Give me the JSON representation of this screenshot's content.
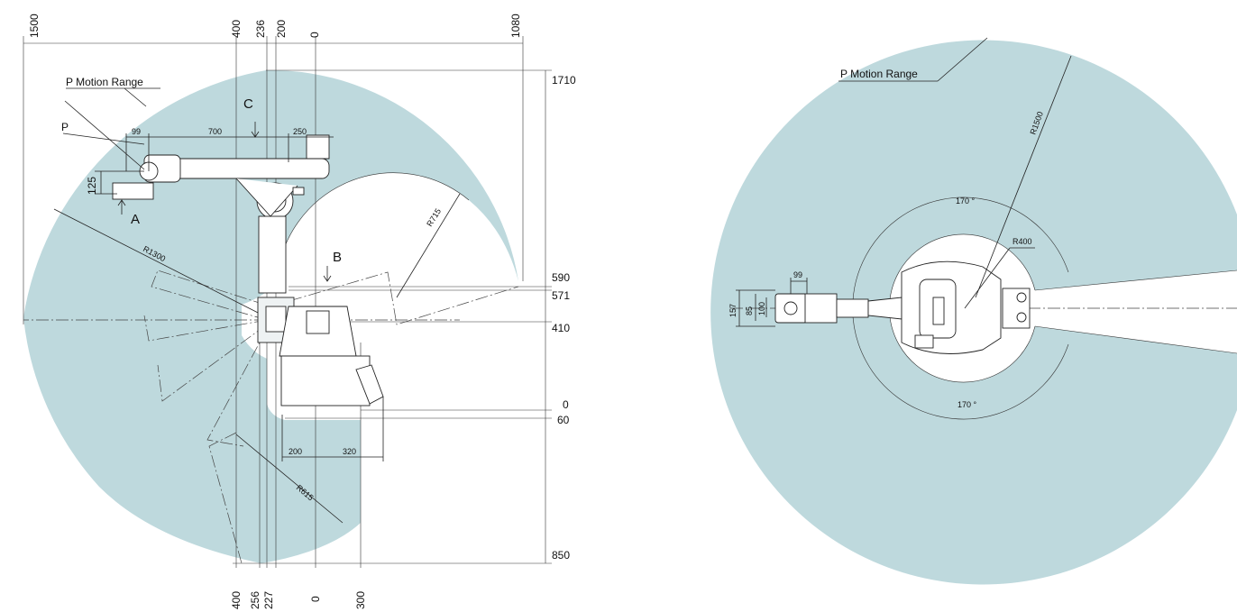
{
  "colors": {
    "motion_range_fill": "#bed9dd",
    "line": "#222222",
    "background": "#ffffff"
  },
  "side_view": {
    "motion_range_label": "P Motion Range",
    "point_label": "P",
    "view_labels": [
      "A",
      "B",
      "C"
    ],
    "top_dims": [
      "1500",
      "400",
      "236",
      "200",
      "0",
      "1080"
    ],
    "bottom_dims": [
      "400",
      "256",
      "227",
      "0",
      "300"
    ],
    "right_dims": [
      "1710",
      "590",
      "571",
      "410",
      "0",
      "60",
      "850"
    ],
    "arm_dims": [
      "99",
      "700",
      "250",
      "125",
      "200",
      "320"
    ],
    "radii": [
      "R1300",
      "R715",
      "R615"
    ]
  },
  "top_view": {
    "motion_range_label": "P Motion Range",
    "radii": [
      "R1500",
      "R400"
    ],
    "angles": [
      "170 °",
      "170 °"
    ],
    "arm_dims": [
      "99",
      "157",
      "85",
      "100"
    ]
  }
}
